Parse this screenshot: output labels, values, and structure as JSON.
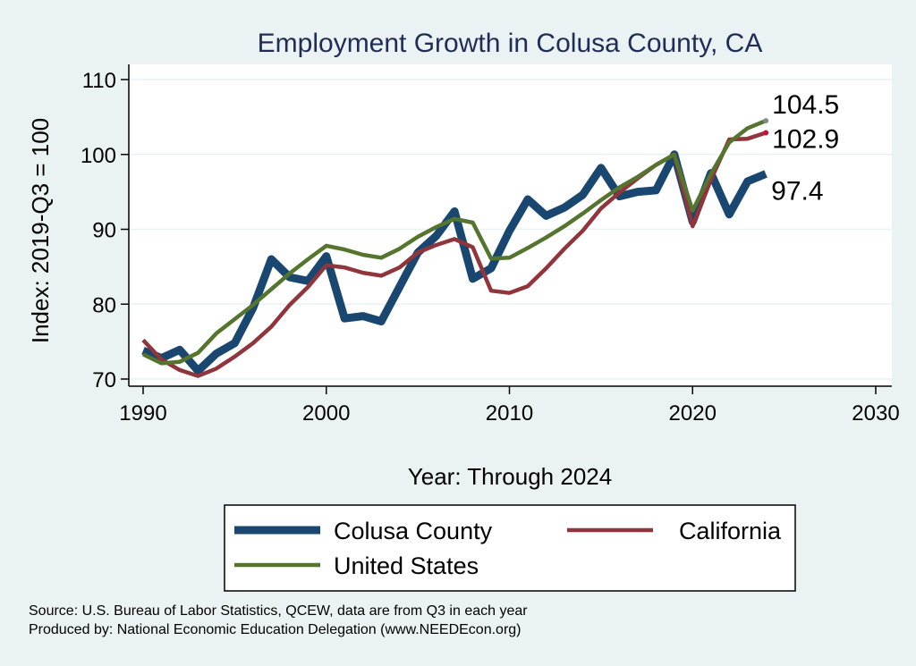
{
  "chart_data": {
    "type": "line",
    "title": "Employment Growth in Colusa County, CA",
    "xlabel": "Year: Through 2024",
    "ylabel": "Index: 2019-Q3 = 100",
    "xlim": [
      1990,
      2030
    ],
    "ylim": [
      70,
      112
    ],
    "x_ticks": [
      1990,
      2000,
      2010,
      2020,
      2030
    ],
    "y_ticks": [
      70,
      80,
      90,
      100,
      110
    ],
    "grid": true,
    "legend_position": "bottom",
    "x": [
      1990,
      1991,
      1992,
      1993,
      1994,
      1995,
      1996,
      1997,
      1998,
      1999,
      2000,
      2001,
      2002,
      2003,
      2004,
      2005,
      2006,
      2007,
      2008,
      2009,
      2010,
      2011,
      2012,
      2013,
      2014,
      2015,
      2016,
      2017,
      2018,
      2019,
      2020,
      2021,
      2022,
      2023,
      2024
    ],
    "series": [
      {
        "name": "Colusa  County",
        "color": "#1a476f",
        "values": [
          73.8,
          72.8,
          73.9,
          71.1,
          73.4,
          74.8,
          79.5,
          86.0,
          83.6,
          83.1,
          86.4,
          78.1,
          78.4,
          77.7,
          82.3,
          86.9,
          89.1,
          92.4,
          83.4,
          84.8,
          89.8,
          94.0,
          91.8,
          92.9,
          94.6,
          98.2,
          94.4,
          95.0,
          95.2,
          100.0,
          91.0,
          97.5,
          92.0,
          96.4,
          97.4
        ]
      },
      {
        "name": "California",
        "color": "#90353b",
        "values": [
          75.2,
          72.6,
          71.2,
          70.4,
          71.4,
          73.0,
          74.8,
          77.0,
          79.9,
          82.3,
          85.2,
          84.9,
          84.2,
          83.8,
          84.9,
          86.9,
          87.9,
          88.7,
          87.6,
          81.8,
          81.5,
          82.4,
          84.8,
          87.4,
          89.8,
          92.8,
          94.9,
          96.8,
          98.6,
          100.0,
          90.4,
          96.6,
          102.0,
          102.1,
          102.9
        ]
      },
      {
        "name": "United States",
        "color": "#55752f",
        "values": [
          73.3,
          72.1,
          72.3,
          73.5,
          76.1,
          78.0,
          79.9,
          82.0,
          84.1,
          86.0,
          87.8,
          87.3,
          86.6,
          86.2,
          87.4,
          89.0,
          90.3,
          91.4,
          90.9,
          86.1,
          86.2,
          87.5,
          88.9,
          90.4,
          92.1,
          93.9,
          95.6,
          97.0,
          98.6,
          100.0,
          92.5,
          97.4,
          101.6,
          103.5,
          104.5
        ]
      }
    ],
    "end_labels": [
      {
        "series": "United States",
        "text": "104.5"
      },
      {
        "series": "California",
        "text": "102.9"
      },
      {
        "series": "Colusa  County",
        "text": "97.4"
      }
    ]
  },
  "footnotes": {
    "source": "Source: U.S. Bureau of Labor Statistics, QCEW, data are from Q3 in each year",
    "producer": "Produced by: National Economic Education Delegation (www.NEEDEcon.org)"
  }
}
